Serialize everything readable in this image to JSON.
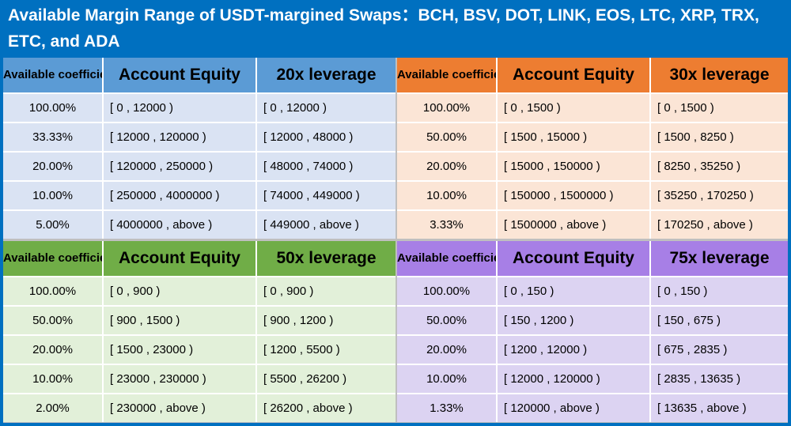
{
  "title": "Available Margin Range of USDT-margined Swaps：BCH, BSV, DOT, LINK, EOS, LTC, XRP, TRX, ETC, and ADA",
  "tables": [
    {
      "header": {
        "coefficient": "Available coefficient",
        "equity": "Account Equity",
        "leverage": "20x leverage"
      },
      "rows": [
        [
          "100.00%",
          "[ 0 , 12000 )",
          "[ 0 , 12000 )"
        ],
        [
          "33.33%",
          "[ 12000 , 120000 )",
          "[ 12000 , 48000 )"
        ],
        [
          "20.00%",
          "[ 120000 , 250000 )",
          "[ 48000 , 74000 )"
        ],
        [
          "10.00%",
          "[ 250000 , 4000000 )",
          "[ 74000 , 449000 )"
        ],
        [
          "5.00%",
          "[ 4000000 , above )",
          "[ 449000 , above )"
        ]
      ]
    },
    {
      "header": {
        "coefficient": "Available coefficient",
        "equity": "Account Equity",
        "leverage": "30x leverage"
      },
      "rows": [
        [
          "100.00%",
          "[ 0 , 1500 )",
          "[ 0 , 1500 )"
        ],
        [
          "50.00%",
          "[ 1500 , 15000 )",
          "[ 1500 , 8250 )"
        ],
        [
          "20.00%",
          "[ 15000 , 150000 )",
          "[ 8250 , 35250 )"
        ],
        [
          "10.00%",
          "[ 150000 , 1500000 )",
          "[ 35250 , 170250 )"
        ],
        [
          "3.33%",
          "[ 1500000 , above )",
          "[ 170250 , above )"
        ]
      ]
    },
    {
      "header": {
        "coefficient": "Available coefficient",
        "equity": "Account Equity",
        "leverage": "50x leverage"
      },
      "rows": [
        [
          "100.00%",
          "[ 0 , 900 )",
          "[ 0 , 900 )"
        ],
        [
          "50.00%",
          "[ 900 , 1500 )",
          "[ 900 , 1200 )"
        ],
        [
          "20.00%",
          "[ 1500 , 23000 )",
          "[ 1200 , 5500 )"
        ],
        [
          "10.00%",
          "[ 23000 , 230000 )",
          "[ 5500 , 26200 )"
        ],
        [
          "2.00%",
          "[ 230000 , above )",
          "[ 26200 , above )"
        ]
      ]
    },
    {
      "header": {
        "coefficient": "Available coefficient",
        "equity": "Account Equity",
        "leverage": "75x leverage"
      },
      "rows": [
        [
          "100.00%",
          "[ 0 , 150 )",
          "[ 0 , 150 )"
        ],
        [
          "50.00%",
          "[ 150 , 1200 )",
          "[ 150 , 675 )"
        ],
        [
          "20.00%",
          "[ 1200 , 12000 )",
          "[ 675 , 2835 )"
        ],
        [
          "10.00%",
          "[ 12000 , 120000 )",
          "[ 2835 , 13635 )"
        ],
        [
          "1.33%",
          "[ 120000 , above )",
          "[ 13635 , above )"
        ]
      ]
    }
  ],
  "colors": {
    "background": "#0070c0",
    "blue_header": "#5b9bd5",
    "blue_row": "#dae3f3",
    "orange_header": "#ed7d31",
    "orange_row": "#fbe5d6",
    "green_header": "#70ad47",
    "green_row": "#e2f0d9",
    "purple_header": "#a77fe6",
    "purple_row": "#dcd3f2"
  }
}
